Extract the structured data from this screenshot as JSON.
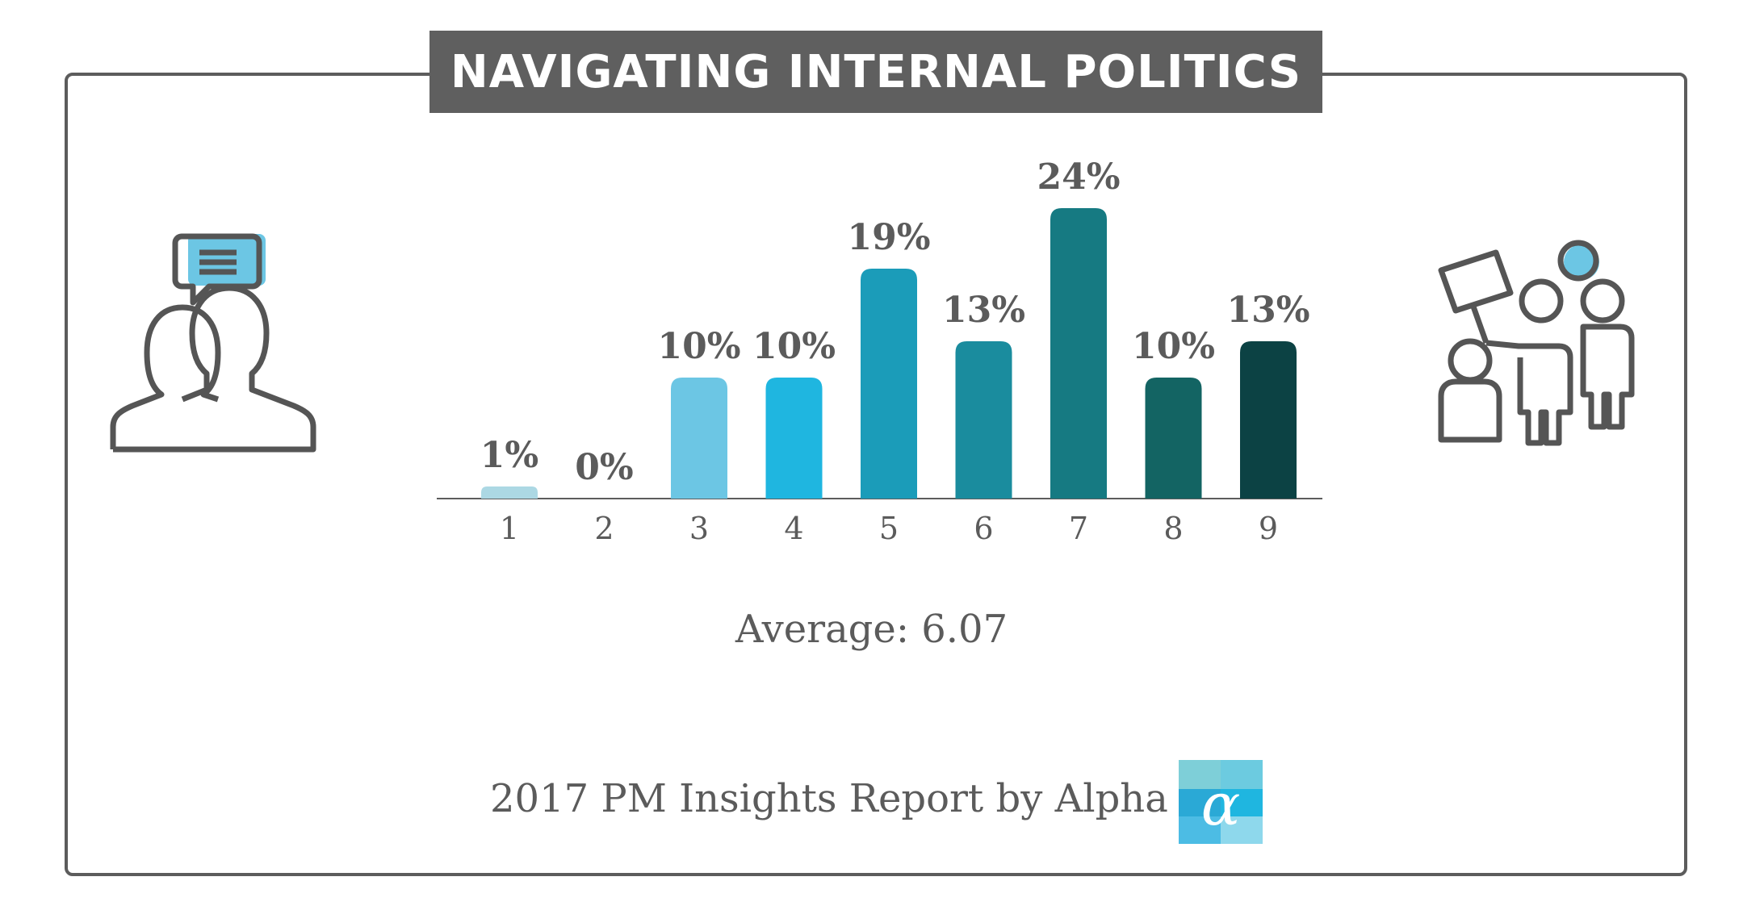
{
  "title": "NAVIGATING INTERNAL POLITICS",
  "icons": {
    "left": "two-people-chat-icon",
    "right": "group-people-sign-icon",
    "logo": "alpha-logo-icon"
  },
  "chart_data": {
    "type": "bar",
    "categories": [
      "1",
      "2",
      "3",
      "4",
      "5",
      "6",
      "7",
      "8",
      "9"
    ],
    "values": [
      1,
      0,
      10,
      10,
      19,
      13,
      24,
      10,
      13
    ],
    "value_labels": [
      "1%",
      "0%",
      "10%",
      "10%",
      "19%",
      "13%",
      "24%",
      "10%",
      "13%"
    ],
    "colors": [
      "#acd8e4",
      "#acd8e4",
      "#6cc6e4",
      "#1fb6e0",
      "#1b9cb9",
      "#1a8c9e",
      "#167a82",
      "#136463",
      "#0c4244"
    ],
    "unit": "%",
    "grid": false,
    "legend": "none"
  },
  "average_label": "Average: 6.07",
  "footer_text": "2017 PM Insights Report by Alpha",
  "logo_glyph": "α"
}
